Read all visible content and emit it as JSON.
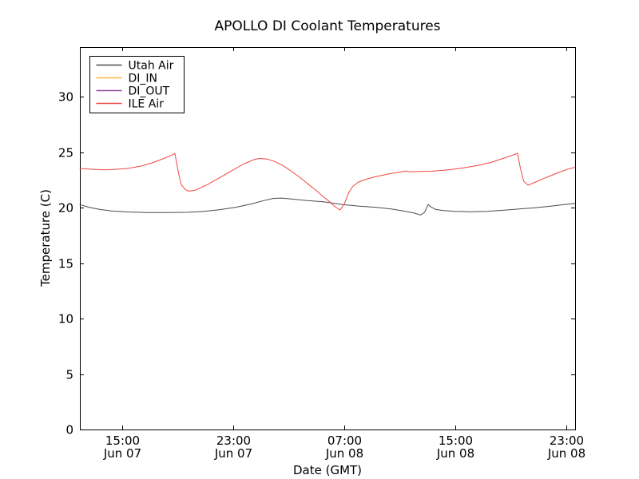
{
  "figure": {
    "background": "#ffffff",
    "spine_color": "#000000",
    "text_color": "#000000"
  },
  "chart_data": {
    "type": "line",
    "title": "APOLLO DI Coolant Temperatures",
    "xlabel": "Date (GMT)",
    "ylabel": "Temperature (C)",
    "x_unit": "hours since Jun 07 00:00 GMT",
    "xlim": [
      11.95,
      47.65
    ],
    "ylim": [
      0,
      34.5
    ],
    "grid": false,
    "legend_position": "upper-left",
    "yticks": [
      0,
      5,
      10,
      15,
      20,
      25,
      30
    ],
    "xticks": [
      {
        "t": 15,
        "time": "15:00",
        "date": "Jun 07"
      },
      {
        "t": 23,
        "time": "23:00",
        "date": "Jun 07"
      },
      {
        "t": 31,
        "time": "07:00",
        "date": "Jun 08"
      },
      {
        "t": 39,
        "time": "15:00",
        "date": "Jun 08"
      },
      {
        "t": 47,
        "time": "23:00",
        "date": "Jun 08"
      }
    ],
    "series": [
      {
        "name": "Utah Air",
        "color": "#4a4a4a",
        "points": [
          [
            11.95,
            20.3
          ],
          [
            12.6,
            20.05
          ],
          [
            13.4,
            19.85
          ],
          [
            14.25,
            19.72
          ],
          [
            15.4,
            19.63
          ],
          [
            16.85,
            19.58
          ],
          [
            18.3,
            19.57
          ],
          [
            19.7,
            19.6
          ],
          [
            20.9,
            19.68
          ],
          [
            22.0,
            19.82
          ],
          [
            23.2,
            20.05
          ],
          [
            24.3,
            20.35
          ],
          [
            25.2,
            20.65
          ],
          [
            25.9,
            20.85
          ],
          [
            26.5,
            20.88
          ],
          [
            27.2,
            20.8
          ],
          [
            28.35,
            20.65
          ],
          [
            29.5,
            20.55
          ],
          [
            30.9,
            20.3
          ],
          [
            32.1,
            20.15
          ],
          [
            33.25,
            20.05
          ],
          [
            34.4,
            19.9
          ],
          [
            35.25,
            19.72
          ],
          [
            36.0,
            19.55
          ],
          [
            36.5,
            19.35
          ],
          [
            36.8,
            19.6
          ],
          [
            37.05,
            20.3
          ],
          [
            37.3,
            20.05
          ],
          [
            37.6,
            19.85
          ],
          [
            38.15,
            19.75
          ],
          [
            39.0,
            19.68
          ],
          [
            40.15,
            19.65
          ],
          [
            41.3,
            19.68
          ],
          [
            42.45,
            19.78
          ],
          [
            43.6,
            19.9
          ],
          [
            44.75,
            20.0
          ],
          [
            45.9,
            20.15
          ],
          [
            46.8,
            20.28
          ],
          [
            47.65,
            20.4
          ]
        ]
      },
      {
        "name": "DI_IN",
        "color": "#ffb244",
        "points": []
      },
      {
        "name": "DI_OUT",
        "color": "#8f4a9c",
        "points": []
      },
      {
        "name": "ILE Air",
        "color": "#ef4640",
        "points": [
          [
            11.95,
            23.55
          ],
          [
            12.8,
            23.48
          ],
          [
            13.7,
            23.42
          ],
          [
            14.55,
            23.47
          ],
          [
            15.4,
            23.55
          ],
          [
            16.3,
            23.75
          ],
          [
            17.15,
            24.05
          ],
          [
            18.0,
            24.45
          ],
          [
            18.55,
            24.75
          ],
          [
            18.8,
            24.9
          ],
          [
            19.05,
            23.2
          ],
          [
            19.25,
            22.1
          ],
          [
            19.55,
            21.65
          ],
          [
            19.8,
            21.5
          ],
          [
            20.3,
            21.6
          ],
          [
            21.15,
            22.1
          ],
          [
            22.0,
            22.7
          ],
          [
            22.9,
            23.35
          ],
          [
            23.75,
            23.95
          ],
          [
            24.5,
            24.35
          ],
          [
            24.9,
            24.45
          ],
          [
            25.45,
            24.4
          ],
          [
            26.05,
            24.15
          ],
          [
            26.6,
            23.8
          ],
          [
            27.2,
            23.3
          ],
          [
            27.8,
            22.75
          ],
          [
            28.35,
            22.2
          ],
          [
            28.95,
            21.6
          ],
          [
            29.5,
            21.0
          ],
          [
            29.95,
            20.55
          ],
          [
            30.35,
            20.1
          ],
          [
            30.7,
            19.8
          ],
          [
            31.0,
            20.3
          ],
          [
            31.3,
            21.3
          ],
          [
            31.6,
            21.9
          ],
          [
            32.0,
            22.3
          ],
          [
            32.4,
            22.5
          ],
          [
            32.8,
            22.65
          ],
          [
            33.25,
            22.8
          ],
          [
            33.8,
            22.95
          ],
          [
            34.4,
            23.1
          ],
          [
            34.95,
            23.2
          ],
          [
            35.45,
            23.33
          ],
          [
            35.7,
            23.25
          ],
          [
            36.4,
            23.28
          ],
          [
            37.25,
            23.3
          ],
          [
            38.15,
            23.38
          ],
          [
            39.0,
            23.5
          ],
          [
            39.85,
            23.65
          ],
          [
            40.75,
            23.85
          ],
          [
            41.6,
            24.1
          ],
          [
            42.45,
            24.45
          ],
          [
            43.15,
            24.75
          ],
          [
            43.5,
            24.92
          ],
          [
            43.7,
            23.6
          ],
          [
            43.95,
            22.4
          ],
          [
            44.25,
            22.05
          ],
          [
            44.75,
            22.3
          ],
          [
            45.6,
            22.75
          ],
          [
            46.5,
            23.2
          ],
          [
            47.15,
            23.5
          ],
          [
            47.65,
            23.65
          ]
        ]
      }
    ]
  }
}
